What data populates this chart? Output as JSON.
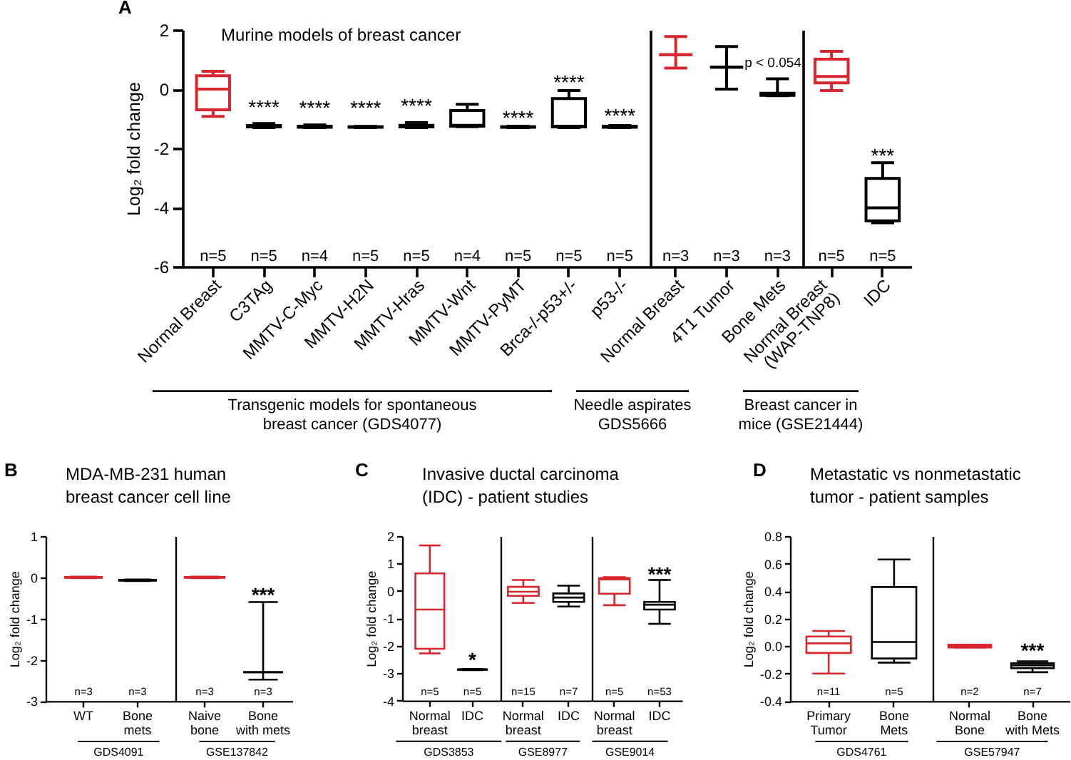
{
  "chart_data": [
    {
      "type": "box",
      "title": "Murine models of breast cancer",
      "ylabel": "Log₂ fold change",
      "xlabel": "Transgenic models for spontaneous breast cancer (GDS4077)",
      "categories": [
        "Normal Breast",
        "C3TAg",
        "MMTV-C-Myc",
        "MMTV-H2N",
        "MMTV-Hras",
        "MMTV-Wnt",
        "MMTV-PyMT",
        "Brca-/-p53+/-",
        "p53-/-"
      ],
      "boxes": [
        {
          "low": -0.92,
          "q1": -0.7,
          "median": 0,
          "q3": 0.45,
          "high": 0.6
        },
        {
          "low": -1.3,
          "q1": -1.28,
          "median": -1.26,
          "q3": -1.23,
          "high": -1.16
        },
        {
          "low": -1.3,
          "q1": -1.29,
          "median": -1.27,
          "q3": -1.25,
          "high": -1.21
        },
        {
          "low": -1.3,
          "q1": -1.29,
          "median": -1.28,
          "q3": -1.27,
          "high": -1.26
        },
        {
          "low": -1.3,
          "q1": -1.28,
          "median": -1.26,
          "q3": -1.22,
          "high": -1.13
        },
        {
          "low": -1.27,
          "q1": -1.25,
          "median": -1.22,
          "q3": -0.72,
          "high": -0.51
        },
        {
          "low": -1.3,
          "q1": -1.29,
          "median": -1.28,
          "q3": -1.27,
          "high": -1.25
        },
        {
          "low": -1.3,
          "q1": -1.28,
          "median": -1.25,
          "q3": -0.32,
          "high": -0.05
        },
        {
          "low": -1.3,
          "q1": -1.29,
          "median": -1.27,
          "q3": -1.25,
          "high": -1.23
        }
      ],
      "colors": [
        "#d7262e",
        "#000000",
        "#000000",
        "#000000",
        "#000000",
        "#000000",
        "#000000",
        "#000000",
        "#000000"
      ],
      "ylim": [
        -6,
        2
      ],
      "yticks": [
        -6,
        -4,
        -2,
        0,
        2
      ],
      "annotations": [
        "A",
        "****",
        "****",
        "****",
        "****",
        "****",
        "****",
        "****",
        "n=5",
        "n=5",
        "n=4",
        "n=5",
        "n=5",
        "n=4",
        "n=5",
        "n=5",
        "n=5"
      ]
    },
    {
      "type": "box",
      "xlabel": "Needle aspirates GDS5666",
      "categories": [
        "Normal Breast",
        "4T1 Tumor",
        "Bone Mets"
      ],
      "boxes": [
        {
          "low": 0.71,
          "q1": 1.16,
          "median": 1.16,
          "q3": 1.16,
          "high": 1.78
        },
        {
          "low": 0,
          "q1": 0.74,
          "median": 0.74,
          "q3": 0.74,
          "high": 1.44
        },
        {
          "low": -0.22,
          "q1": -0.21,
          "median": -0.16,
          "q3": -0.14,
          "high": 0.35
        }
      ],
      "colors": [
        "#d7262e",
        "#000000",
        "#000000"
      ],
      "ylim": [
        -6,
        2
      ],
      "tick_labels": "x",
      "annotations": [
        "p < 0.054",
        "n=3",
        "n=3",
        "n=3"
      ]
    },
    {
      "type": "box",
      "xlabel": "Breast cancer in mice (GSE21444)",
      "categories": [
        "Normal Breast (WAP-TNP8)",
        "IDC"
      ],
      "boxes": [
        {
          "low": -0.05,
          "q1": 0.21,
          "median": 0.43,
          "q3": 1.01,
          "high": 1.28
        },
        {
          "low": -4.52,
          "q1": -4.45,
          "median": -4.01,
          "q3": -3.02,
          "high": -2.49
        }
      ],
      "colors": [
        "#d7262e",
        "#000000"
      ],
      "ylim": [
        -6,
        2
      ],
      "tick_labels": "x",
      "annotations": [
        "***",
        "n=5",
        "n=5"
      ]
    },
    {
      "type": "box",
      "title": "MDA-MB-231 human breast cancer cell line",
      "ylabel": "Log₂ fold change",
      "xlabel": "GDS4091",
      "categories": [
        "WT",
        "Bone mets"
      ],
      "boxes": [
        {
          "low": -0.02,
          "q1": -0.01,
          "median": 0,
          "q3": 0.01,
          "high": 0.02
        },
        {
          "low": -0.09,
          "q1": -0.08,
          "median": -0.07,
          "q3": -0.06,
          "high": -0.05
        }
      ],
      "colors": [
        "#d7262e",
        "#000000"
      ],
      "ylim": [
        -3,
        1
      ],
      "yticks": [
        -3,
        -2,
        -1,
        0,
        1
      ],
      "annotations": [
        "B",
        "n=3",
        "n=3"
      ]
    },
    {
      "type": "box",
      "xlabel": "GSE137842",
      "categories": [
        "Naive bone",
        "Bone with mets"
      ],
      "boxes": [
        {
          "low": -0.02,
          "q1": -0.01,
          "median": 0,
          "q3": 0.01,
          "high": 0.02
        },
        {
          "low": -2.48,
          "q1": -2.3,
          "median": -2.3,
          "q3": -2.3,
          "high": -0.6
        }
      ],
      "colors": [
        "#d7262e",
        "#000000"
      ],
      "ylim": [
        -3,
        1
      ],
      "tick_labels": "x",
      "annotations": [
        "***",
        "n=3",
        "n=3"
      ]
    },
    {
      "type": "box",
      "title": "Invasive ductal carcinoma (IDC) - patient studies",
      "ylabel": "Log₂ fold change",
      "xlabel": "GDS3853",
      "categories": [
        "Normal breast",
        "IDC"
      ],
      "boxes": [
        {
          "low": -2.28,
          "q1": -2.11,
          "median": -0.68,
          "q3": 0.64,
          "high": 1.66
        },
        {
          "low": -2.89,
          "q1": -2.88,
          "median": -2.87,
          "q3": -2.86,
          "high": -2.85
        }
      ],
      "colors": [
        "#d7262e",
        "#000000"
      ],
      "ylim": [
        -4,
        2
      ],
      "yticks": [
        -4,
        -3,
        -2,
        -1,
        0,
        1,
        2
      ],
      "annotations": [
        "C",
        "*",
        "n=5",
        "n=5"
      ]
    },
    {
      "type": "box",
      "xlabel": "GSE8977",
      "categories": [
        "Normal breast",
        "IDC"
      ],
      "boxes": [
        {
          "low": -0.44,
          "q1": -0.18,
          "median": -0.03,
          "q3": 0.15,
          "high": 0.4
        },
        {
          "low": -0.57,
          "q1": -0.4,
          "median": -0.24,
          "q3": -0.09,
          "high": 0.19
        }
      ],
      "colors": [
        "#d7262e",
        "#000000"
      ],
      "ylim": [
        -4,
        2
      ],
      "tick_labels": "x",
      "annotations": [
        "n=15",
        "n=7"
      ]
    },
    {
      "type": "box",
      "xlabel": "GSE9014",
      "categories": [
        "Normal breast",
        "IDC"
      ],
      "boxes": [
        {
          "low": -0.52,
          "q1": -0.1,
          "median": 0.42,
          "q3": 0.47,
          "high": 0.5
        },
        {
          "low": -1.2,
          "q1": -0.68,
          "median": -0.5,
          "q3": -0.4,
          "high": 0.4
        }
      ],
      "colors": [
        "#d7262e",
        "#000000"
      ],
      "ylim": [
        -4,
        2
      ],
      "tick_labels": "x",
      "annotations": [
        "***",
        "n=5",
        "n=53"
      ]
    },
    {
      "type": "box",
      "title": "Metastatic vs nonmetastatic tumor - patient samples",
      "ylabel": "Log₂ fold change",
      "xlabel": "GDS4761",
      "categories": [
        "Primary Tumor",
        "Bone Mets"
      ],
      "boxes": [
        {
          "low": -0.2,
          "q1": -0.05,
          "median": 0.02,
          "q3": 0.07,
          "high": 0.11
        },
        {
          "low": -0.12,
          "q1": -0.09,
          "median": 0.03,
          "q3": 0.43,
          "high": 0.63
        }
      ],
      "colors": [
        "#d7262e",
        "#000000"
      ],
      "ylim": [
        -0.4,
        0.8
      ],
      "yticks": [
        -0.4,
        -0.2,
        {
          "value": 0,
          "label": "0.0"
        },
        0.2,
        0.4,
        0.6,
        0.8
      ],
      "annotations": [
        "D",
        "n=11",
        "n=5"
      ]
    },
    {
      "type": "box",
      "xlabel": "GSE57947",
      "categories": [
        "Normal Bone",
        "Bone with Mets"
      ],
      "boxes": [
        {
          "low": -0.01,
          "q1": -0.01,
          "median": 0,
          "q3": 0.01,
          "high": 0.01
        },
        {
          "low": -0.19,
          "q1": -0.16,
          "median": -0.14,
          "q3": -0.125,
          "high": -0.11
        }
      ],
      "colors": [
        "#d7262e",
        "#000000"
      ],
      "ylim": [
        -0.4,
        0.8
      ],
      "tick_labels": "x",
      "annotations": [
        "***",
        "n=2",
        "n=7"
      ]
    }
  ]
}
